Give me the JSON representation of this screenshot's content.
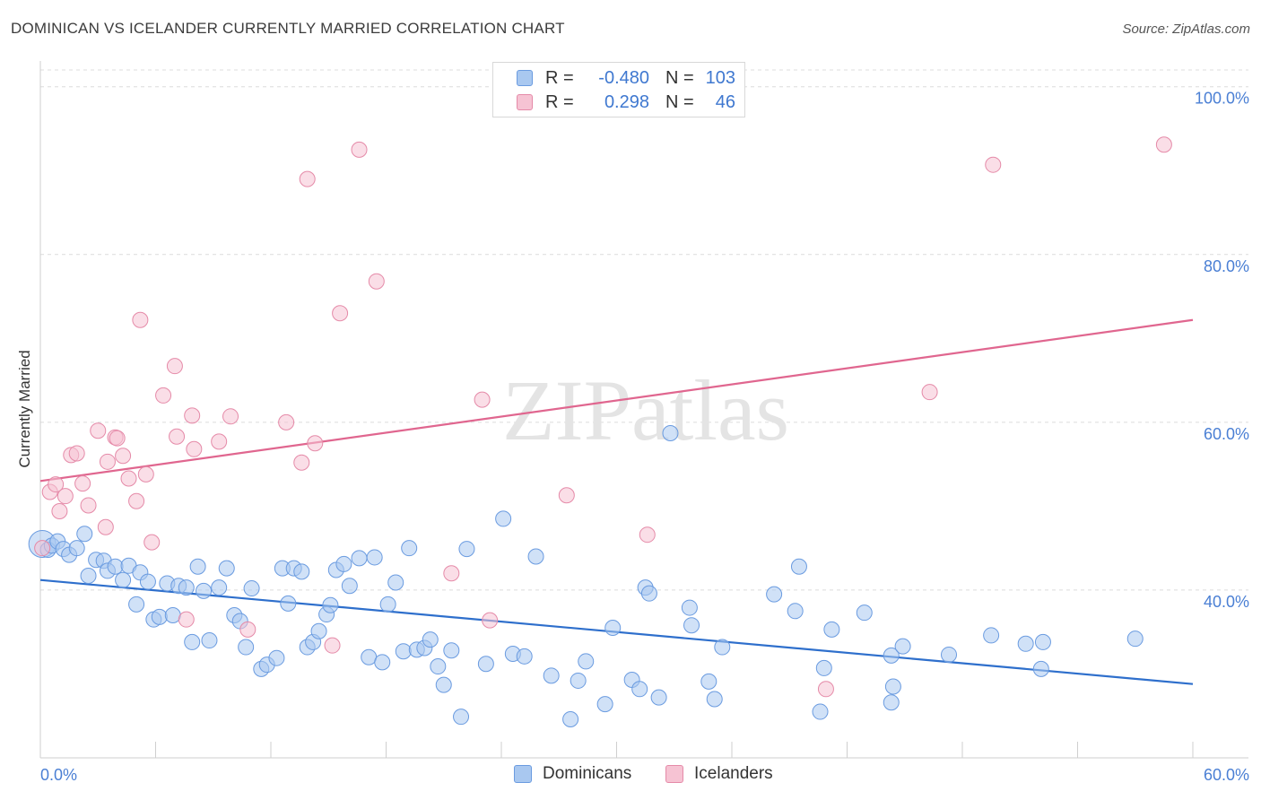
{
  "title": "DOMINICAN VS ICELANDER CURRENTLY MARRIED CORRELATION CHART",
  "source": "Source: ZipAtlas.com",
  "watermark": "ZIPatlas",
  "legend": {
    "rows": [
      {
        "r_label": "R =",
        "r_value": "-0.480",
        "n_label": "N =",
        "n_value": "103",
        "color": "#a9c8f0",
        "border": "#6a9be0"
      },
      {
        "r_label": "R =",
        "r_value": "0.298",
        "n_label": "N =",
        "n_value": "46",
        "color": "#f6c3d3",
        "border": "#e58aa8"
      }
    ]
  },
  "bottom_legend": [
    {
      "label": "Dominicans",
      "color": "#a9c8f0",
      "border": "#6a9be0"
    },
    {
      "label": "Icelanders",
      "color": "#f6c3d3",
      "border": "#e58aa8"
    }
  ],
  "chart_data": {
    "type": "scatter",
    "title": "DOMINICAN VS ICELANDER CURRENTLY MARRIED CORRELATION CHART",
    "xlabel": "",
    "ylabel": "Currently Married",
    "xlim": [
      0,
      60
    ],
    "ylim": [
      20,
      102
    ],
    "x_tick_labels": [
      "0.0%",
      "60.0%"
    ],
    "y_ticks": [
      40,
      60,
      80,
      100
    ],
    "y_tick_labels": [
      "40.0%",
      "60.0%",
      "80.0%",
      "100.0%"
    ],
    "grid": true,
    "series": [
      {
        "name": "Dominicans",
        "color": "#6a9be0",
        "fill": "#a9c8f0",
        "trend": {
          "x": [
            0,
            60
          ],
          "y": [
            41.2,
            28.8
          ],
          "color": "#2e6fcc"
        },
        "points": [
          [
            0.1,
            45.5
          ],
          [
            0.4,
            44.8
          ],
          [
            0.6,
            45.3
          ],
          [
            0.9,
            45.8
          ],
          [
            1.2,
            44.9
          ],
          [
            1.5,
            44.2
          ],
          [
            1.9,
            45.0
          ],
          [
            2.3,
            46.7
          ],
          [
            2.5,
            41.7
          ],
          [
            2.9,
            43.6
          ],
          [
            3.3,
            43.5
          ],
          [
            3.5,
            42.3
          ],
          [
            3.9,
            42.8
          ],
          [
            4.3,
            41.2
          ],
          [
            4.6,
            42.9
          ],
          [
            5.0,
            38.3
          ],
          [
            5.2,
            42.1
          ],
          [
            5.6,
            41.0
          ],
          [
            5.9,
            36.5
          ],
          [
            6.2,
            36.8
          ],
          [
            6.6,
            40.8
          ],
          [
            6.9,
            37.0
          ],
          [
            7.2,
            40.5
          ],
          [
            7.6,
            40.3
          ],
          [
            7.9,
            33.8
          ],
          [
            8.2,
            42.8
          ],
          [
            8.5,
            39.9
          ],
          [
            8.8,
            34.0
          ],
          [
            9.3,
            40.3
          ],
          [
            9.7,
            42.6
          ],
          [
            10.1,
            37.0
          ],
          [
            10.4,
            36.3
          ],
          [
            10.7,
            33.2
          ],
          [
            11.0,
            40.2
          ],
          [
            11.5,
            30.6
          ],
          [
            11.8,
            31.1
          ],
          [
            12.3,
            31.9
          ],
          [
            12.6,
            42.6
          ],
          [
            12.9,
            38.4
          ],
          [
            13.2,
            42.6
          ],
          [
            13.6,
            42.2
          ],
          [
            13.9,
            33.2
          ],
          [
            14.2,
            33.8
          ],
          [
            14.5,
            35.1
          ],
          [
            14.9,
            37.1
          ],
          [
            15.1,
            38.2
          ],
          [
            15.4,
            42.4
          ],
          [
            15.8,
            43.1
          ],
          [
            16.1,
            40.5
          ],
          [
            16.6,
            43.8
          ],
          [
            17.1,
            32.0
          ],
          [
            17.4,
            43.9
          ],
          [
            17.8,
            31.4
          ],
          [
            18.1,
            38.3
          ],
          [
            18.5,
            40.9
          ],
          [
            18.9,
            32.7
          ],
          [
            19.2,
            45.0
          ],
          [
            19.6,
            32.9
          ],
          [
            20.0,
            33.1
          ],
          [
            20.3,
            34.1
          ],
          [
            20.7,
            30.9
          ],
          [
            21.0,
            28.7
          ],
          [
            21.4,
            32.8
          ],
          [
            21.9,
            24.9
          ],
          [
            22.2,
            44.9
          ],
          [
            23.2,
            31.2
          ],
          [
            24.1,
            48.5
          ],
          [
            24.6,
            32.4
          ],
          [
            25.2,
            32.1
          ],
          [
            25.8,
            44.0
          ],
          [
            26.6,
            29.8
          ],
          [
            27.6,
            24.6
          ],
          [
            28.0,
            29.2
          ],
          [
            28.4,
            31.5
          ],
          [
            29.4,
            26.4
          ],
          [
            29.8,
            35.5
          ],
          [
            30.8,
            29.3
          ],
          [
            31.2,
            28.2
          ],
          [
            31.5,
            40.3
          ],
          [
            31.7,
            39.6
          ],
          [
            32.2,
            27.2
          ],
          [
            32.8,
            58.7
          ],
          [
            33.8,
            37.9
          ],
          [
            33.9,
            35.8
          ],
          [
            34.8,
            29.1
          ],
          [
            35.1,
            27.0
          ],
          [
            35.5,
            33.2
          ],
          [
            38.2,
            39.5
          ],
          [
            39.3,
            37.5
          ],
          [
            39.5,
            42.8
          ],
          [
            40.6,
            25.5
          ],
          [
            40.8,
            30.7
          ],
          [
            41.2,
            35.3
          ],
          [
            42.9,
            37.3
          ],
          [
            44.3,
            32.2
          ],
          [
            44.3,
            26.6
          ],
          [
            44.4,
            28.5
          ],
          [
            44.9,
            33.3
          ],
          [
            47.3,
            32.3
          ],
          [
            49.5,
            34.6
          ],
          [
            51.3,
            33.6
          ],
          [
            52.1,
            30.6
          ],
          [
            52.2,
            33.8
          ],
          [
            57.0,
            34.2
          ]
        ]
      },
      {
        "name": "Icelanders",
        "color": "#e58aa8",
        "fill": "#f6c3d3",
        "trend": {
          "x": [
            0,
            60
          ],
          "y": [
            53.0,
            72.2
          ],
          "color": "#e0668f"
        },
        "points": [
          [
            0.1,
            45.0
          ],
          [
            0.5,
            51.7
          ],
          [
            0.8,
            52.6
          ],
          [
            1.0,
            49.4
          ],
          [
            1.3,
            51.2
          ],
          [
            1.6,
            56.1
          ],
          [
            1.9,
            56.3
          ],
          [
            2.2,
            52.7
          ],
          [
            2.5,
            50.1
          ],
          [
            3.0,
            59.0
          ],
          [
            3.4,
            47.5
          ],
          [
            3.5,
            55.3
          ],
          [
            3.9,
            58.2
          ],
          [
            4.0,
            58.1
          ],
          [
            4.3,
            56.0
          ],
          [
            4.6,
            53.3
          ],
          [
            5.0,
            50.6
          ],
          [
            5.2,
            72.2
          ],
          [
            5.5,
            53.8
          ],
          [
            5.8,
            45.7
          ],
          [
            6.4,
            63.2
          ],
          [
            7.0,
            66.7
          ],
          [
            7.1,
            58.3
          ],
          [
            7.6,
            36.5
          ],
          [
            7.9,
            60.8
          ],
          [
            8.0,
            56.8
          ],
          [
            9.3,
            57.7
          ],
          [
            9.9,
            60.7
          ],
          [
            10.8,
            35.3
          ],
          [
            12.8,
            60.0
          ],
          [
            13.6,
            55.2
          ],
          [
            13.9,
            89.0
          ],
          [
            14.3,
            57.5
          ],
          [
            15.2,
            33.4
          ],
          [
            15.6,
            73.0
          ],
          [
            16.6,
            92.5
          ],
          [
            17.5,
            76.8
          ],
          [
            21.4,
            42.0
          ],
          [
            23.0,
            62.7
          ],
          [
            23.4,
            36.4
          ],
          [
            27.4,
            51.3
          ],
          [
            31.6,
            46.6
          ],
          [
            40.9,
            28.2
          ],
          [
            46.3,
            63.6
          ],
          [
            49.6,
            90.7
          ],
          [
            58.5,
            93.1
          ]
        ]
      }
    ]
  }
}
